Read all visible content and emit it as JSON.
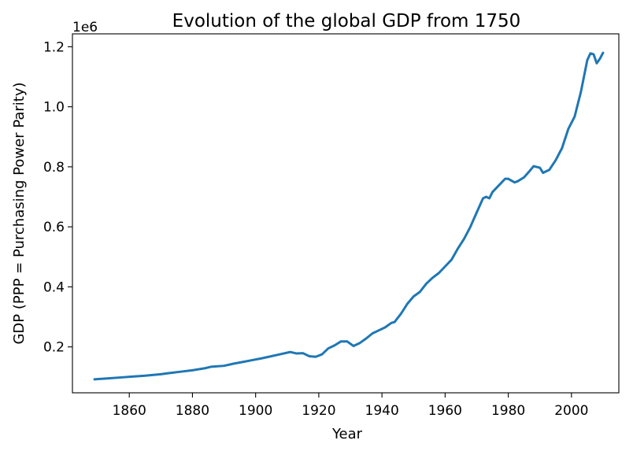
{
  "chart_data": {
    "type": "line",
    "title": "Evolution of the global GDP from 1750",
    "xlabel": "Year",
    "ylabel": "GDP (PPP = Purchasing Power Parity)",
    "y_offset_label": "1e6",
    "xlim": [
      1842,
      2015
    ],
    "ylim": [
      0.047,
      1.243
    ],
    "x_ticks": [
      1860,
      1880,
      1900,
      1920,
      1940,
      1960,
      1980,
      2000
    ],
    "x_tick_labels": [
      "1860",
      "1880",
      "1900",
      "1920",
      "1940",
      "1960",
      "1980",
      "2000"
    ],
    "y_ticks": [
      0.2,
      0.4,
      0.6,
      0.8,
      1.0,
      1.2
    ],
    "y_tick_labels": [
      "0.2",
      "0.4",
      "0.6",
      "0.8",
      "1.0",
      "1.2"
    ],
    "grid": false,
    "colors": {
      "line": "#1f77b4"
    },
    "series": [
      {
        "x": [
          1849,
          1853,
          1857,
          1861,
          1865,
          1870,
          1872,
          1876,
          1880,
          1884,
          1886,
          1890,
          1893,
          1896,
          1899,
          1902,
          1905,
          1908,
          1911,
          1913,
          1915,
          1917,
          1919,
          1921,
          1923,
          1925,
          1927,
          1929,
          1931,
          1933,
          1935,
          1937,
          1939,
          1941,
          1943,
          1944,
          1946,
          1948,
          1950,
          1952,
          1954,
          1956,
          1958,
          1960,
          1962,
          1964,
          1966,
          1968,
          1970,
          1972,
          1973,
          1974,
          1975,
          1977,
          1979,
          1980,
          1982,
          1983,
          1985,
          1987,
          1988,
          1990,
          1991,
          1993,
          1995,
          1997,
          1999,
          2001,
          2003,
          2005,
          2006,
          2007,
          2008,
          2009,
          2010
        ],
        "y": [
          0.092,
          0.095,
          0.098,
          0.101,
          0.104,
          0.109,
          0.112,
          0.117,
          0.122,
          0.129,
          0.134,
          0.137,
          0.144,
          0.15,
          0.156,
          0.162,
          0.169,
          0.176,
          0.183,
          0.178,
          0.179,
          0.169,
          0.167,
          0.175,
          0.195,
          0.205,
          0.218,
          0.218,
          0.203,
          0.213,
          0.228,
          0.245,
          0.255,
          0.265,
          0.28,
          0.283,
          0.31,
          0.343,
          0.368,
          0.383,
          0.41,
          0.43,
          0.446,
          0.468,
          0.49,
          0.527,
          0.56,
          0.6,
          0.648,
          0.695,
          0.7,
          0.695,
          0.716,
          0.738,
          0.76,
          0.76,
          0.748,
          0.752,
          0.765,
          0.789,
          0.802,
          0.797,
          0.78,
          0.79,
          0.822,
          0.862,
          0.926,
          0.967,
          1.05,
          1.155,
          1.178,
          1.175,
          1.145,
          1.16,
          1.18
        ]
      }
    ]
  }
}
